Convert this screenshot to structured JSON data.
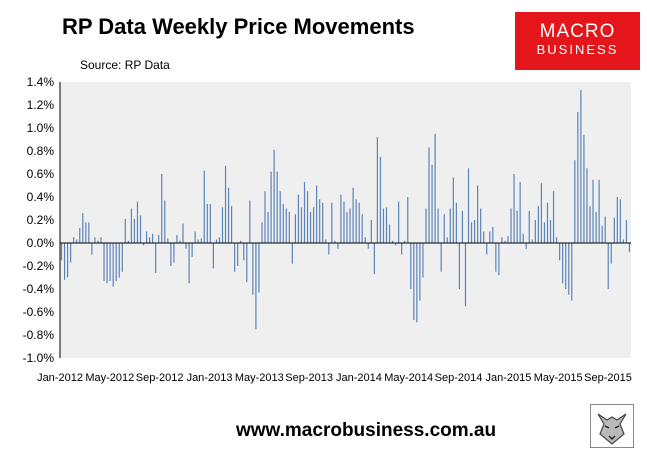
{
  "header": {
    "title": "RP Data Weekly Price Movements",
    "source": "Source: RP Data"
  },
  "brand": {
    "logo_line1": "MACRO",
    "logo_line2": "BUSINESS",
    "website": "www.macrobusiness.com.au",
    "logo_color": "#e4161b"
  },
  "colors": {
    "plot_bg": "#efefef",
    "bar": "#5b84b8",
    "axis": "#000000"
  },
  "chart_data": {
    "type": "bar",
    "title": "RP Data Weekly Price Movements",
    "xlabel": "",
    "ylabel": "",
    "ylim": [
      -1.0,
      1.4
    ],
    "y_ticks": [
      "-1.0%",
      "-0.8%",
      "-0.6%",
      "-0.4%",
      "-0.2%",
      "0.0%",
      "0.2%",
      "0.4%",
      "0.6%",
      "0.8%",
      "1.0%",
      "1.2%",
      "1.4%"
    ],
    "x_ticks": [
      "Jan-2012",
      "May-2012",
      "Sep-2012",
      "Jan-2013",
      "May-2013",
      "Sep-2013",
      "Jan-2014",
      "May-2014",
      "Sep-2014",
      "Jan-2015",
      "May-2015",
      "Sep-2015"
    ],
    "grid": false,
    "legend": "none",
    "unit": "%",
    "values": [
      -0.15,
      -0.32,
      -0.3,
      -0.17,
      0.05,
      0.03,
      0.13,
      0.26,
      0.18,
      0.18,
      -0.1,
      0.05,
      0.02,
      0.05,
      -0.33,
      -0.35,
      -0.33,
      -0.38,
      -0.33,
      -0.3,
      -0.25,
      0.21,
      0.02,
      0.3,
      0.21,
      0.36,
      0.24,
      -0.02,
      0.1,
      0.05,
      0.08,
      -0.26,
      0.07,
      0.6,
      0.37,
      0.04,
      -0.2,
      -0.17,
      0.07,
      0.02,
      0.17,
      -0.05,
      -0.35,
      -0.12,
      0.1,
      0.03,
      0.04,
      0.63,
      0.34,
      0.34,
      -0.22,
      0.03,
      0.05,
      0.31,
      0.67,
      0.48,
      0.32,
      -0.25,
      -0.2,
      0.02,
      -0.15,
      -0.34,
      0.37,
      -0.45,
      -0.75,
      -0.43,
      0.18,
      0.45,
      0.27,
      0.62,
      0.81,
      0.62,
      0.45,
      0.34,
      0.3,
      0.27,
      -0.18,
      0.25,
      0.42,
      0.31,
      0.53,
      0.45,
      0.27,
      0.31,
      0.5,
      0.38,
      0.35,
      0.03,
      -0.1,
      0.35,
      0.02,
      -0.05,
      0.42,
      0.36,
      0.27,
      0.3,
      0.48,
      0.38,
      0.35,
      0.25,
      0.05,
      -0.05,
      0.2,
      -0.27,
      0.92,
      0.75,
      0.3,
      0.31,
      0.16,
      0.02,
      -0.02,
      0.36,
      -0.1,
      0.02,
      0.4,
      -0.4,
      -0.67,
      -0.69,
      -0.5,
      -0.3,
      0.3,
      0.83,
      0.68,
      0.95,
      0.3,
      -0.25,
      0.25,
      0.05,
      0.3,
      0.57,
      0.35,
      -0.4,
      0.28,
      -0.55,
      0.65,
      0.18,
      0.2,
      0.5,
      0.3,
      0.1,
      -0.1,
      0.1,
      0.14,
      -0.25,
      -0.28,
      0.05,
      0.02,
      0.06,
      0.3,
      0.6,
      0.28,
      0.53,
      0.08,
      -0.05,
      0.28,
      0.03,
      0.2,
      0.32,
      0.52,
      0.18,
      0.35,
      0.2,
      0.45,
      0.05,
      -0.15,
      -0.35,
      -0.4,
      -0.45,
      -0.5,
      0.72,
      1.14,
      1.33,
      0.94,
      0.65,
      0.32,
      0.55,
      0.27,
      0.55,
      0.15,
      0.23,
      -0.4,
      -0.18,
      0.22,
      0.4,
      0.38,
      0.03,
      0.2,
      -0.08
    ]
  }
}
